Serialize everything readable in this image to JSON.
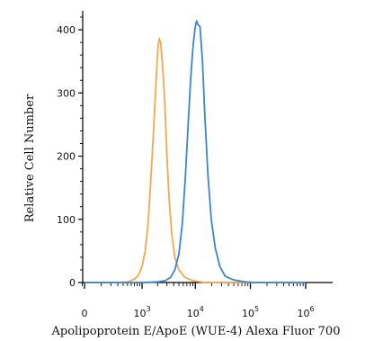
{
  "chart_data": {
    "type": "line",
    "title": "",
    "xlabel": "Apolipoprotein E/ApoE (WUE-4) Alexa Fluor 700",
    "ylabel": "Relative Cell Number",
    "x_scale": "log (biexponential)",
    "x_ticks": [
      {
        "label": "0",
        "value": 0
      },
      {
        "label": "10",
        "exp": "3",
        "value": 1000
      },
      {
        "label": "10",
        "exp": "4",
        "value": 10000
      },
      {
        "label": "10",
        "exp": "5",
        "value": 100000
      },
      {
        "label": "10",
        "exp": "6",
        "value": 1000000
      }
    ],
    "y_ticks": [
      {
        "label": "0",
        "value": 0
      },
      {
        "label": "100",
        "value": 100
      },
      {
        "label": "200",
        "value": 200
      },
      {
        "label": "300",
        "value": 300
      },
      {
        "label": "400",
        "value": 400
      }
    ],
    "ylim": [
      0,
      430
    ],
    "grid": false,
    "series": [
      {
        "color": "#f5a84b",
        "points": [
          [
            0,
            0
          ],
          [
            300,
            0
          ],
          [
            500,
            1
          ],
          [
            700,
            5
          ],
          [
            850,
            12
          ],
          [
            1000,
            25
          ],
          [
            1150,
            50
          ],
          [
            1300,
            90
          ],
          [
            1450,
            150
          ],
          [
            1600,
            210
          ],
          [
            1750,
            270
          ],
          [
            1900,
            330
          ],
          [
            2050,
            375
          ],
          [
            2150,
            386
          ],
          [
            2300,
            378
          ],
          [
            2500,
            340
          ],
          [
            2750,
            280
          ],
          [
            3000,
            200
          ],
          [
            3300,
            130
          ],
          [
            3700,
            75
          ],
          [
            4200,
            40
          ],
          [
            5000,
            20
          ],
          [
            6500,
            8
          ],
          [
            9000,
            3
          ],
          [
            15000,
            0
          ],
          [
            30000,
            0
          ],
          [
            100000,
            0
          ],
          [
            1000000,
            0
          ]
        ]
      },
      {
        "color": "#3a86d4",
        "points": [
          [
            0,
            0
          ],
          [
            1000,
            0
          ],
          [
            2000,
            1
          ],
          [
            2800,
            3
          ],
          [
            3500,
            8
          ],
          [
            4200,
            20
          ],
          [
            5000,
            45
          ],
          [
            5800,
            95
          ],
          [
            6600,
            170
          ],
          [
            7400,
            250
          ],
          [
            8200,
            320
          ],
          [
            9000,
            370
          ],
          [
            9800,
            400
          ],
          [
            10500,
            414
          ],
          [
            11200,
            408
          ],
          [
            12200,
            405
          ],
          [
            13500,
            350
          ],
          [
            15000,
            260
          ],
          [
            17000,
            170
          ],
          [
            19500,
            100
          ],
          [
            23000,
            55
          ],
          [
            28000,
            25
          ],
          [
            35000,
            10
          ],
          [
            50000,
            4
          ],
          [
            80000,
            1
          ],
          [
            120000,
            0
          ],
          [
            1000000,
            0
          ]
        ]
      }
    ]
  }
}
